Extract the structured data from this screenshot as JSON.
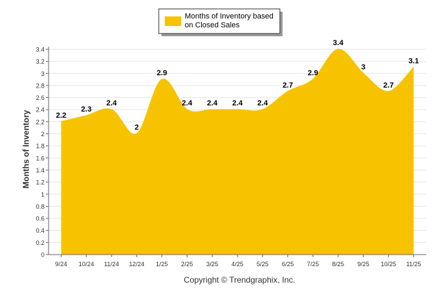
{
  "chart_data": {
    "type": "area",
    "legend": {
      "label_line1": "Months of Inventory based",
      "label_line2": "on Closed Sales",
      "position": "top-center"
    },
    "ylabel": "Months of Inventory",
    "xlabel": "",
    "ylim": [
      0,
      3.4
    ],
    "yticks": [
      "0",
      "0.2",
      "0.4",
      "0.6",
      "0.8",
      "1",
      "1.2",
      "1.4",
      "1.6",
      "1.8",
      "2",
      "2.2",
      "2.4",
      "2.6",
      "2.8",
      "3",
      "3.2",
      "3.4"
    ],
    "grid": true,
    "categories": [
      "9/24",
      "10/24",
      "11/24",
      "12/24",
      "1/25",
      "2/25",
      "3/25",
      "4/25",
      "5/25",
      "6/25",
      "7/25",
      "8/25",
      "9/25",
      "10/25",
      "11/25"
    ],
    "series": [
      {
        "name": "Months of Inventory based on Closed Sales",
        "values": [
          2.2,
          2.3,
          2.4,
          2,
          2.9,
          2.4,
          2.4,
          2.4,
          2.4,
          2.7,
          2.9,
          3.4,
          3,
          2.7,
          3.1
        ],
        "labels": [
          "2.2",
          "2.3",
          "2.4",
          "2",
          "2.9",
          "2.4",
          "2.4",
          "2.4",
          "2.4",
          "2.7",
          "2.9",
          "3.4",
          "3",
          "2.7",
          "3.1"
        ]
      }
    ],
    "fill_color": "#f7c300",
    "footer": "Copyright © Trendgraphix, Inc."
  }
}
